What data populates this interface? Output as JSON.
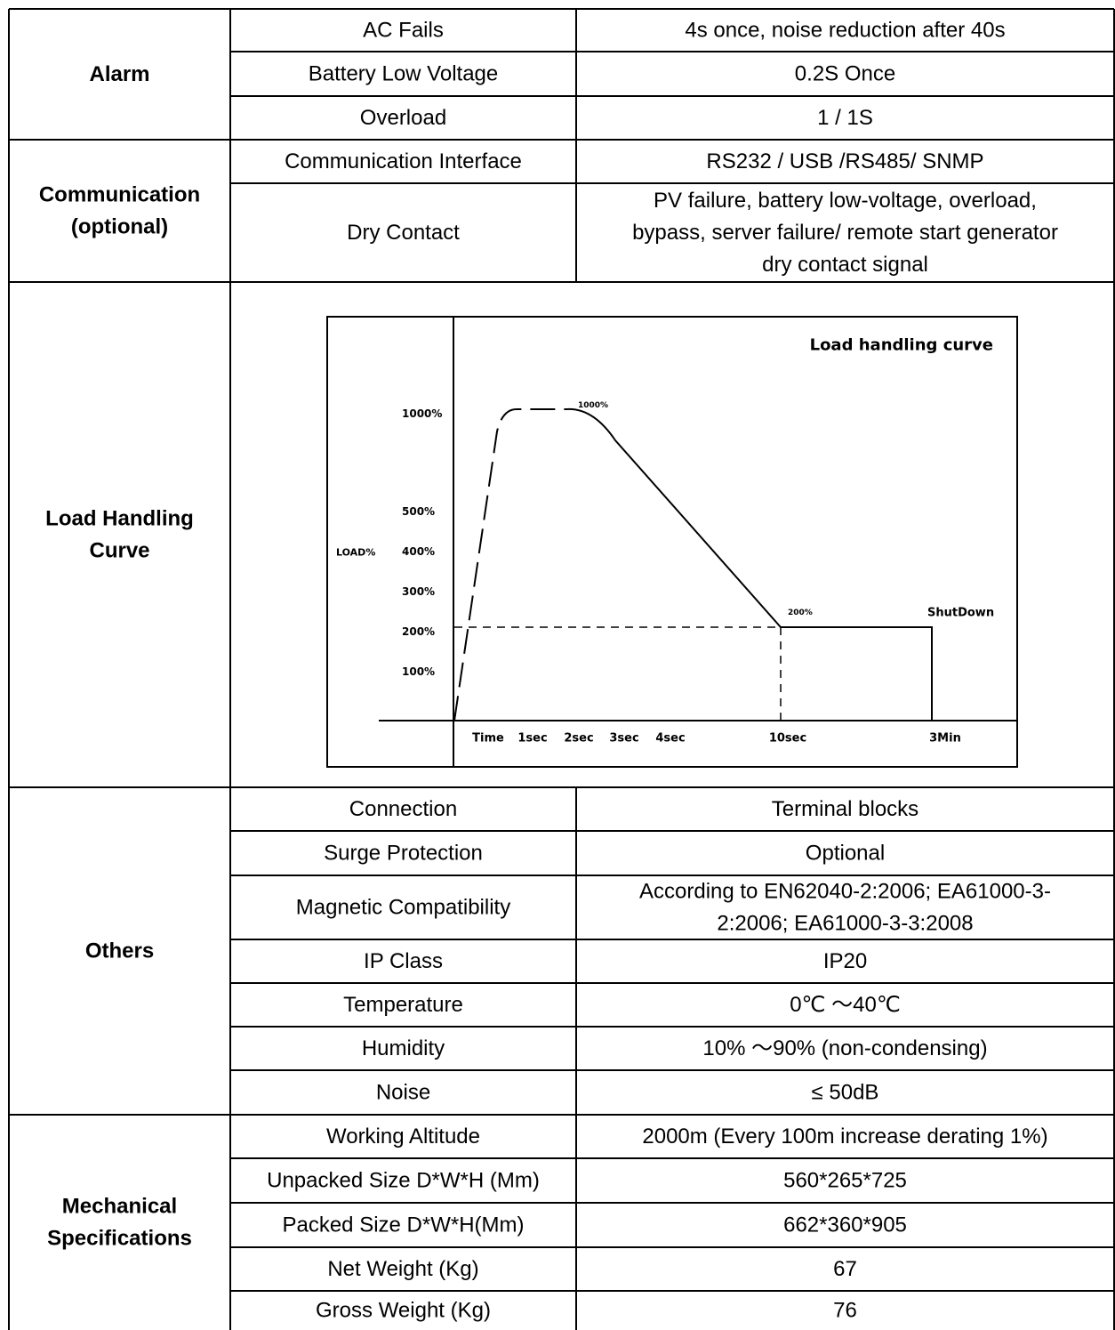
{
  "sections": [
    {
      "category": [
        "Alarm"
      ],
      "rows": [
        {
          "label": "AC Fails",
          "value": [
            "4s once, noise reduction after 40s"
          ]
        },
        {
          "label": "Battery Low Voltage",
          "value": [
            "0.2S Once"
          ]
        },
        {
          "label": "Overload",
          "value": [
            "1 / 1S"
          ]
        }
      ]
    },
    {
      "category": [
        "Communication",
        "(optional)"
      ],
      "rows": [
        {
          "label": "Communication Interface",
          "value": [
            "RS232 / USB /RS485/ SNMP"
          ]
        },
        {
          "label": "Dry Contact",
          "value": [
            "PV failure, battery low-voltage, overload,",
            "bypass, server failure/ remote start generator",
            "dry contact signal"
          ]
        }
      ]
    },
    {
      "category": [
        "Load Handling",
        "Curve"
      ],
      "rows": []
    },
    {
      "category": [
        "Others"
      ],
      "rows": [
        {
          "label": "Connection",
          "value": [
            "Terminal blocks"
          ]
        },
        {
          "label": "Surge Protection",
          "value": [
            "Optional"
          ]
        },
        {
          "label": "Magnetic Compatibility",
          "value": [
            "According to EN62040-2:2006; EA61000-3-",
            "2:2006; EA61000-3-3:2008"
          ]
        },
        {
          "label": "IP Class",
          "value": [
            "IP20"
          ]
        },
        {
          "label": "Temperature",
          "value": [
            "0℃ ～40℃"
          ]
        },
        {
          "label": "Humidity",
          "value": [
            "10% ～90% (non-condensing)"
          ]
        },
        {
          "label": "Noise",
          "value": [
            "≤ 50dB"
          ]
        }
      ]
    },
    {
      "category": [
        "Mechanical",
        "Specifications"
      ],
      "rows": [
        {
          "label": "Working Altitude",
          "value": [
            "2000m (Every 100m increase derating 1%)"
          ]
        },
        {
          "label": "Unpacked Size D*W*H (Mm)",
          "value": [
            "560*265*725"
          ]
        },
        {
          "label": "Packed Size D*W*H(Mm)",
          "value": [
            "662*360*905"
          ]
        },
        {
          "label": "Net Weight (Kg)",
          "value": [
            "67"
          ]
        },
        {
          "label": "Gross Weight (Kg)",
          "value": [
            "76"
          ]
        }
      ]
    }
  ],
  "chart_data": {
    "type": "line",
    "title": "Load handling curve",
    "ylabel": "LOAD%",
    "xlabel": "",
    "x_ticks": [
      "Time",
      "1sec",
      "2sec",
      "3sec",
      "4sec",
      "10sec",
      "3Min"
    ],
    "y_ticks": [
      "100%",
      "200%",
      "300%",
      "400%",
      "500%",
      "1000%"
    ],
    "annotations": [
      {
        "text": "1000%",
        "at": "2sec"
      },
      {
        "text": "200%",
        "at": "10sec"
      },
      {
        "text": "ShutDown",
        "at": "3Min"
      }
    ],
    "series": [
      {
        "style": "dashed",
        "points": [
          {
            "x": "Time",
            "y": 0
          },
          {
            "x": "1sec",
            "y": 1000
          },
          {
            "x": "2sec",
            "y": 1000
          }
        ]
      },
      {
        "style": "solid",
        "points": [
          {
            "x": "2sec",
            "y": 1000
          },
          {
            "x": "10sec",
            "y": 200
          },
          {
            "x": "3Min",
            "y": 200
          },
          {
            "x": "3Min",
            "y": 0
          }
        ]
      }
    ],
    "reference_lines": [
      {
        "style": "dashed",
        "orientation": "horizontal",
        "y": 200,
        "from": "Time",
        "to": "10sec"
      },
      {
        "style": "dashed",
        "orientation": "vertical",
        "x": "10sec",
        "from": 0,
        "to": 200
      }
    ]
  }
}
